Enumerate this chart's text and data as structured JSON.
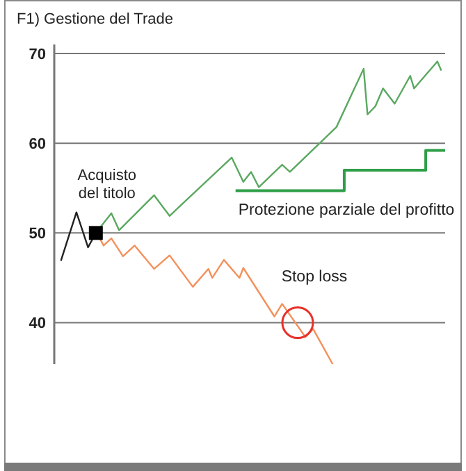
{
  "chart_data": {
    "type": "line",
    "title": "F1) Gestione del Trade",
    "categories": [
      null,
      null,
      null,
      null,
      null,
      null,
      null,
      null,
      null,
      null,
      null,
      null,
      null,
      null,
      null,
      null,
      null,
      null,
      null,
      null,
      null,
      null,
      null,
      null,
      null,
      null,
      null,
      null,
      null,
      null,
      null,
      null,
      null,
      null,
      null,
      null,
      null,
      null,
      null,
      null,
      null,
      null,
      null,
      null,
      null,
      null,
      null,
      null,
      null,
      null,
      null,
      null,
      null,
      null,
      null,
      null,
      null,
      null,
      null,
      null,
      null,
      null,
      null,
      null,
      null,
      null,
      null,
      null,
      null,
      null,
      null,
      null,
      null,
      null,
      null,
      null,
      null,
      null,
      null,
      null,
      null,
      null,
      null,
      null,
      null,
      null,
      null,
      null,
      null,
      null,
      null,
      null,
      null,
      null,
      null,
      null,
      null,
      null,
      null,
      null,
      null
    ],
    "ylim": [
      35.4,
      71
    ],
    "yticks": [
      40,
      50,
      60,
      70
    ],
    "grid": "y",
    "marker": "none",
    "series": [
      {
        "color": "#222222",
        "values": [
          null,
          46.9,
          null,
          null,
          null,
          52.3,
          null,
          null,
          48.4,
          null,
          50,
          null,
          null,
          null,
          null,
          null,
          null,
          null,
          null,
          null,
          null,
          null,
          null,
          null,
          null,
          null,
          null,
          null,
          null,
          null,
          null,
          null,
          null,
          null,
          null,
          null,
          null,
          null,
          null,
          null,
          null,
          null,
          null,
          null,
          null,
          null,
          null,
          null,
          null,
          null,
          null,
          null,
          null,
          null,
          null,
          null,
          null,
          null,
          null,
          null,
          null,
          null,
          null,
          null,
          null,
          null,
          null,
          null,
          null,
          null,
          null,
          null,
          null,
          null,
          null,
          null,
          null,
          null,
          null,
          null,
          null,
          null,
          null,
          null,
          null,
          null,
          null,
          null,
          null,
          null,
          null,
          null,
          null,
          null,
          null,
          null,
          null,
          null,
          null,
          null,
          null
        ]
      },
      {
        "color": "#5aa860",
        "values": [
          null,
          null,
          null,
          null,
          null,
          null,
          null,
          null,
          null,
          null,
          50,
          null,
          null,
          null,
          52.2,
          null,
          50.3,
          null,
          null,
          null,
          null,
          null,
          null,
          null,
          null,
          54.2,
          null,
          null,
          null,
          51.9,
          null,
          null,
          null,
          null,
          null,
          null,
          null,
          null,
          null,
          null,
          null,
          null,
          null,
          null,
          null,
          58.4,
          null,
          null,
          55.7,
          null,
          56.8,
          null,
          55.1,
          null,
          null,
          null,
          null,
          null,
          57.6,
          null,
          56.8,
          null,
          null,
          null,
          null,
          null,
          null,
          null,
          null,
          null,
          null,
          null,
          61.8,
          null,
          null,
          null,
          null,
          null,
          null,
          68.3,
          63.2,
          null,
          64.1,
          null,
          66.1,
          null,
          null,
          64.4,
          null,
          null,
          null,
          67.5,
          66.1,
          null,
          null,
          null,
          null,
          null,
          69.1,
          68.1,
          null
        ]
      },
      {
        "color": "#f4905a",
        "values": [
          null,
          null,
          null,
          null,
          null,
          null,
          null,
          null,
          null,
          null,
          50.2,
          null,
          48.6,
          null,
          49.4,
          null,
          null,
          47.4,
          null,
          null,
          48.6,
          null,
          null,
          null,
          null,
          46.0,
          null,
          null,
          null,
          47.5,
          null,
          null,
          null,
          null,
          null,
          44.0,
          null,
          null,
          null,
          46.0,
          45.0,
          null,
          null,
          47.0,
          null,
          null,
          null,
          45.0,
          46.1,
          null,
          null,
          null,
          null,
          null,
          null,
          null,
          40.7,
          null,
          42.1,
          null,
          null,
          null,
          null,
          null,
          38.4,
          null,
          39.3,
          null,
          null,
          null,
          null,
          35.4,
          null,
          null,
          null,
          null,
          null,
          null,
          null,
          null,
          null,
          null,
          null,
          null,
          null,
          null,
          null,
          null,
          null,
          null,
          null,
          null,
          null,
          null,
          null,
          null,
          null,
          null,
          null,
          null,
          null
        ]
      },
      {
        "type": "step",
        "name": "Protezione parziale del profitto",
        "color": "#2e9e48",
        "values": [
          null,
          null,
          null,
          null,
          null,
          null,
          null,
          null,
          null,
          null,
          null,
          null,
          null,
          null,
          null,
          null,
          null,
          null,
          null,
          null,
          null,
          null,
          null,
          null,
          null,
          null,
          null,
          null,
          null,
          null,
          null,
          null,
          null,
          null,
          null,
          null,
          null,
          null,
          null,
          null,
          null,
          null,
          null,
          null,
          null,
          null,
          54.7,
          null,
          null,
          null,
          null,
          null,
          null,
          null,
          null,
          null,
          null,
          null,
          null,
          null,
          null,
          null,
          null,
          null,
          null,
          null,
          null,
          null,
          null,
          null,
          null,
          null,
          null,
          null,
          57.0,
          null,
          null,
          null,
          null,
          null,
          null,
          null,
          null,
          null,
          null,
          null,
          null,
          null,
          null,
          null,
          null,
          null,
          null,
          null,
          null,
          59.2,
          null,
          null,
          null,
          null,
          59.2
        ]
      },
      {
        "type": "scatter",
        "marker": "square",
        "color": "#000000",
        "values": [
          null,
          null,
          null,
          null,
          null,
          null,
          null,
          null,
          null,
          null,
          50,
          null,
          null,
          null,
          null,
          null,
          null,
          null,
          null,
          null,
          null,
          null,
          null,
          null,
          null,
          null,
          null,
          null,
          null,
          null,
          null,
          null,
          null,
          null,
          null,
          null,
          null,
          null,
          null,
          null,
          null,
          null,
          null,
          null,
          null,
          null,
          null,
          null,
          null,
          null,
          null,
          null,
          null,
          null,
          null,
          null,
          null,
          null,
          null,
          null,
          null,
          null,
          null,
          null,
          null,
          null,
          null,
          null,
          null,
          null,
          null,
          null,
          null,
          null,
          null,
          null,
          null,
          null,
          null,
          null,
          null,
          null,
          null,
          null,
          null,
          null,
          null,
          null,
          null,
          null,
          null,
          null,
          null,
          null,
          null,
          null,
          null,
          null,
          null,
          null,
          null
        ]
      },
      {
        "type": "scatter",
        "marker": "circle",
        "color": "#e8302a",
        "values": [
          null,
          null,
          null,
          null,
          null,
          null,
          null,
          null,
          null,
          null,
          null,
          null,
          null,
          null,
          null,
          null,
          null,
          null,
          null,
          null,
          null,
          null,
          null,
          null,
          null,
          null,
          null,
          null,
          null,
          null,
          null,
          null,
          null,
          null,
          null,
          null,
          null,
          null,
          null,
          null,
          null,
          null,
          null,
          null,
          null,
          null,
          null,
          null,
          null,
          null,
          null,
          null,
          null,
          null,
          null,
          null,
          null,
          null,
          null,
          null,
          null,
          null,
          40,
          null,
          null,
          null,
          null,
          null,
          null,
          null,
          null,
          null,
          null,
          null,
          null,
          null,
          null,
          null,
          null,
          null,
          null,
          null,
          null,
          null,
          null,
          null,
          null,
          null,
          null,
          null,
          null,
          null,
          null,
          null,
          null,
          null,
          null,
          null,
          null,
          null,
          null
        ]
      }
    ],
    "annotations": [
      "Acquisto del titolo",
      "Stop loss"
    ]
  }
}
